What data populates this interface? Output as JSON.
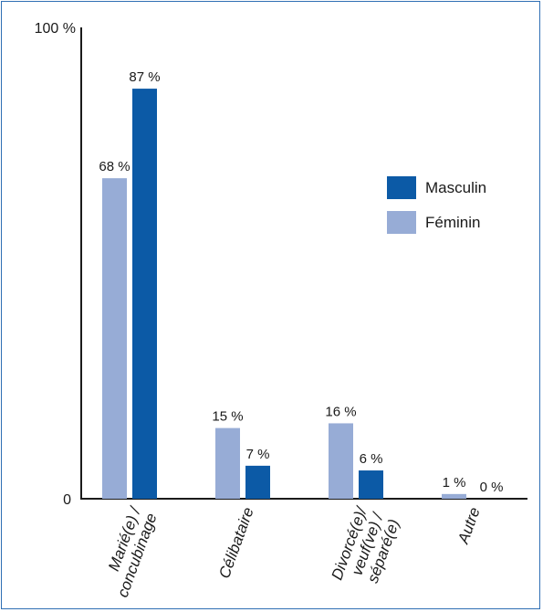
{
  "chart_data": {
    "type": "bar",
    "categories": [
      [
        "Marié(e) /",
        "concubinage"
      ],
      [
        "Célibataire"
      ],
      [
        "Divorcé(e)/",
        "veuf(ve) /",
        "séparé(e)"
      ],
      [
        "Autre"
      ]
    ],
    "series": [
      {
        "name": "Féminin",
        "values": [
          68,
          15,
          16,
          1
        ],
        "labels": [
          "68 %",
          "15 %",
          "16 %",
          "1 %"
        ],
        "color": "#97acd6"
      },
      {
        "name": "Masculin",
        "values": [
          87,
          7,
          6,
          0
        ],
        "labels": [
          "87 %",
          "7 %",
          "6 %",
          "0 %"
        ],
        "color": "#0c5aa6"
      }
    ],
    "y_tick_labels": {
      "top": "100 %",
      "bottom": "0"
    },
    "ylim": [
      0,
      100
    ],
    "legend": {
      "placement": "right",
      "order": [
        "Masculin",
        "Féminin"
      ]
    },
    "grid": false
  }
}
